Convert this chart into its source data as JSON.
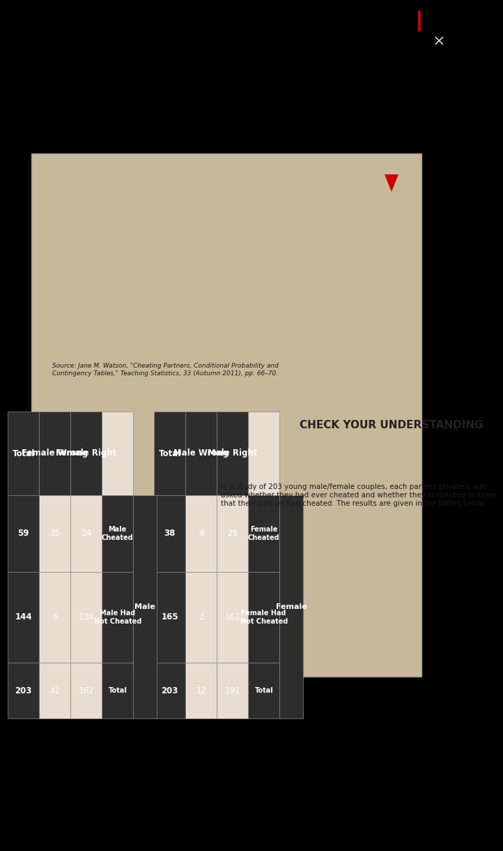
{
  "title": "CHECK YOUR UNDERSTANDING",
  "intro_text": "In a study of 203 young male/female couples, each partner privately was\nasked whether they had ever cheated and whether they suspected or knew\nthat their partner had cheated. The results are given in the tables below.",
  "table1_label": "Female",
  "table1_header": [
    "",
    "Female\nCheated",
    "Female Had\nNot Cheated",
    "Total"
  ],
  "table1_rows": [
    [
      "Male Right",
      "29",
      "162",
      "191"
    ],
    [
      "Male Wrong",
      "9",
      "3",
      "12"
    ],
    [
      "Total",
      "38",
      "165",
      "203"
    ]
  ],
  "table2_label": "Male",
  "table2_header": [
    "",
    "Male\nCheated",
    "Male Had\nNot Cheated",
    "Total"
  ],
  "table2_rows": [
    [
      "Female Right",
      "24",
      "138",
      "162"
    ],
    [
      "Female Wrong",
      "35",
      "6",
      "41"
    ],
    [
      "Total",
      "59",
      "144",
      "203"
    ]
  ],
  "source_text": "Source: Jane M. Watson, \"Cheating Partners, Conditional Probability and\nContingency Tables,\" Teaching Statistics, 33 (Autumn 2011), pp. 66–70.",
  "bg_color": "#000000",
  "page_bg": "#c8b89a",
  "header_bg": "#2d2d2d",
  "row_bg": "#e8ddd0",
  "total_row_bg": "#2d2d2d",
  "text_color": "#1a1a1a",
  "header_text_color": "#ffffff",
  "title_color": "#222222",
  "title_red": "#cc0000",
  "border_color": "#888888",
  "close_color": "#cccccc",
  "red_bar_color": "#cc0000"
}
